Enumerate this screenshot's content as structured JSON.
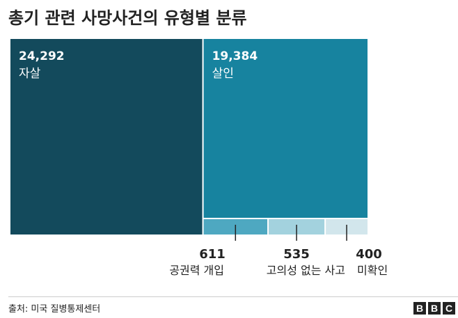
{
  "title": "총기 관련 사망사건의 유형별 분류",
  "source": "출처: 미국 질병통제센터",
  "logo": [
    "B",
    "B",
    "C"
  ],
  "colors": {
    "suicide": "#134a5c",
    "homicide": "#17839f",
    "police": "#4ea8c1",
    "unintentional": "#a3d2de",
    "undetermined": "#d2e6ec"
  },
  "chart_data": {
    "type": "treemap",
    "title": "총기 관련 사망사건의 유형별 분류",
    "items": [
      {
        "label": "자살",
        "value": 24292,
        "display": "24,292"
      },
      {
        "label": "살인",
        "value": 19384,
        "display": "19,384"
      },
      {
        "label": "공권력 개입",
        "value": 611,
        "display": "611"
      },
      {
        "label": "고의성 없는 사고",
        "value": 535,
        "display": "535"
      },
      {
        "label": "미확인",
        "value": 400,
        "display": "400"
      }
    ]
  }
}
